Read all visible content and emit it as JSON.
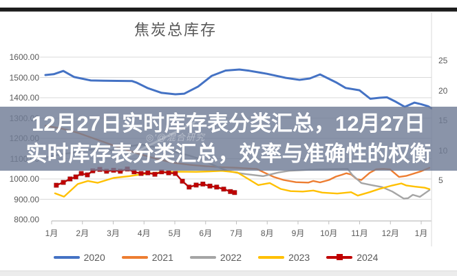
{
  "header": {
    "top_bar": true
  },
  "chart": {
    "title": "焦炭总库存",
    "y_axis_left_labels": [
      "1600.00",
      "1500.00",
      "1400.00",
      "1300.00",
      "1200.00",
      "1100.00",
      "1000.00",
      "900.00",
      "800.00"
    ],
    "y_axis_right_labels": [
      "25",
      "20",
      "15",
      "10",
      "5"
    ],
    "x_axis_labels": [
      "1月",
      "2月",
      "3月",
      "4月",
      "5月",
      "6月",
      "7月",
      "8月",
      "9月",
      "10月",
      "11月",
      "12月",
      "1月"
    ],
    "legend_labels": [
      "2020",
      "2021",
      "2022",
      "2023",
      "2024"
    ],
    "colors": {
      "s2020": "#4472C4",
      "s2021": "#ED7D31",
      "s2022": "#A5A5A5",
      "s2023": "#FFC000",
      "s2024": "#C00000",
      "gridline": "#D9D9D9",
      "axis": "#BFBFBF",
      "text": "#595959"
    }
  },
  "overlay": {
    "line1": "12月27日实时库存表分类汇总，12月27日",
    "line2": "实时库存表分类汇总，效率与准确性的权衡",
    "watermark": "◎'@混合研究",
    "background": "rgba(112,125,150,0.82)"
  },
  "chart_data": {
    "type": "line",
    "title": "焦炭总库存",
    "xlabel": "",
    "ylabel": "",
    "x_axis": "months 1月 through following 1月 (weekly points)",
    "ylim": [
      800,
      1600
    ],
    "y_tick_step": 100,
    "grid": true,
    "legend_position": "bottom",
    "series": [
      {
        "name": "2020",
        "color": "#4472C4",
        "marker": "none",
        "points": [
          [
            1.0,
            1512
          ],
          [
            1.26,
            1516
          ],
          [
            1.56,
            1532
          ],
          [
            1.9,
            1502
          ],
          [
            2.42,
            1485
          ],
          [
            2.81,
            1484
          ],
          [
            3.24,
            1483
          ],
          [
            3.71,
            1482
          ],
          [
            3.84,
            1475
          ],
          [
            4.2,
            1447
          ],
          [
            4.63,
            1424
          ],
          [
            5.06,
            1417
          ],
          [
            5.34,
            1420
          ],
          [
            5.77,
            1455
          ],
          [
            6.2,
            1508
          ],
          [
            6.63,
            1534
          ],
          [
            7.06,
            1539
          ],
          [
            7.37,
            1533
          ],
          [
            7.92,
            1518
          ],
          [
            8.51,
            1498
          ],
          [
            8.94,
            1488
          ],
          [
            9.26,
            1495
          ],
          [
            9.58,
            1515
          ],
          [
            10.08,
            1476
          ],
          [
            10.38,
            1448
          ],
          [
            10.81,
            1437
          ],
          [
            11.15,
            1395
          ],
          [
            11.45,
            1400
          ],
          [
            11.67,
            1402
          ],
          [
            11.95,
            1380
          ],
          [
            12.23,
            1355
          ],
          [
            12.53,
            1376
          ],
          [
            12.74,
            1368
          ],
          [
            12.96,
            1358
          ],
          [
            13.06,
            1348
          ]
        ]
      },
      {
        "name": "2021",
        "color": "#ED7D31",
        "marker": "none",
        "points": [
          [
            1.0,
            1262
          ],
          [
            1.5,
            1248
          ],
          [
            2.0,
            1228
          ],
          [
            2.5,
            1200
          ],
          [
            3.0,
            1172
          ],
          [
            3.5,
            1145
          ],
          [
            4.0,
            1120
          ],
          [
            4.5,
            1098
          ],
          [
            5.0,
            1080
          ],
          [
            5.5,
            1070
          ],
          [
            6.0,
            1063
          ],
          [
            6.5,
            1058
          ],
          [
            7.0,
            1055
          ],
          [
            7.3,
            1052
          ],
          [
            7.6,
            1050
          ],
          [
            7.86,
            1030
          ],
          [
            8.14,
            1010
          ],
          [
            8.44,
            995
          ],
          [
            8.83,
            984
          ],
          [
            9.22,
            982
          ],
          [
            9.37,
            990
          ],
          [
            9.58,
            983
          ],
          [
            9.86,
            995
          ],
          [
            10.08,
            1012
          ],
          [
            10.25,
            1020
          ],
          [
            10.4,
            1028
          ],
          [
            10.55,
            1022
          ],
          [
            10.72,
            1000
          ],
          [
            10.87,
            995
          ],
          [
            11.13,
            1030
          ],
          [
            11.34,
            1048
          ],
          [
            11.56,
            1050
          ],
          [
            11.77,
            1047
          ],
          [
            12.05,
            1010
          ],
          [
            12.27,
            1015
          ],
          [
            12.48,
            1025
          ],
          [
            12.74,
            1038
          ],
          [
            13.0,
            1055
          ]
        ]
      },
      {
        "name": "2022",
        "color": "#A5A5A5",
        "marker": "none",
        "points": [
          [
            1.0,
            1105
          ],
          [
            1.5,
            1122
          ],
          [
            2.0,
            1132
          ],
          [
            2.5,
            1147
          ],
          [
            3.0,
            1140
          ],
          [
            3.5,
            1158
          ],
          [
            4.0,
            1170
          ],
          [
            4.5,
            1155
          ],
          [
            5.0,
            1135
          ],
          [
            5.5,
            1115
          ],
          [
            5.9,
            1095
          ],
          [
            6.2,
            1072
          ],
          [
            6.45,
            1055
          ],
          [
            6.68,
            1040
          ],
          [
            7.0,
            1030
          ],
          [
            7.26,
            1024
          ],
          [
            7.8,
            1014
          ],
          [
            8.29,
            1032
          ],
          [
            8.61,
            1040
          ],
          [
            9.26,
            1045
          ],
          [
            9.9,
            1048
          ],
          [
            10.44,
            1050
          ],
          [
            10.59,
            1020
          ],
          [
            10.87,
            980
          ],
          [
            11.19,
            970
          ],
          [
            11.52,
            960
          ],
          [
            11.84,
            938
          ],
          [
            12.2,
            903
          ],
          [
            12.33,
            905
          ],
          [
            12.48,
            922
          ],
          [
            12.7,
            912
          ],
          [
            13.0,
            945
          ]
        ]
      },
      {
        "name": "2023",
        "color": "#FFC000",
        "marker": "none",
        "points": [
          [
            1.3,
            929
          ],
          [
            1.58,
            913
          ],
          [
            2.01,
            975
          ],
          [
            2.33,
            990
          ],
          [
            2.63,
            981
          ],
          [
            3.13,
            1005
          ],
          [
            3.62,
            1014
          ],
          [
            4.1,
            1025
          ],
          [
            4.63,
            1033
          ],
          [
            5.17,
            1036
          ],
          [
            5.71,
            1035
          ],
          [
            6.14,
            1037
          ],
          [
            6.51,
            1040
          ],
          [
            7.0,
            1032
          ],
          [
            7.26,
            1007
          ],
          [
            7.65,
            970
          ],
          [
            8.01,
            980
          ],
          [
            8.35,
            951
          ],
          [
            8.66,
            940
          ],
          [
            9.04,
            938
          ],
          [
            9.37,
            943
          ],
          [
            9.65,
            933
          ],
          [
            10.12,
            928
          ],
          [
            10.55,
            935
          ],
          [
            10.76,
            918
          ],
          [
            11.13,
            935
          ],
          [
            11.41,
            950
          ],
          [
            11.84,
            968
          ],
          [
            12.12,
            978
          ],
          [
            12.27,
            968
          ],
          [
            12.55,
            962
          ],
          [
            12.85,
            957
          ],
          [
            13.0,
            950
          ]
        ]
      },
      {
        "name": "2024",
        "color": "#C00000",
        "marker": "square",
        "points": [
          [
            1.34,
            969
          ],
          [
            1.56,
            983
          ],
          [
            1.77,
            1000
          ],
          [
            1.95,
            1010
          ],
          [
            2.12,
            1027
          ],
          [
            2.31,
            1020
          ],
          [
            2.48,
            1040
          ],
          [
            2.7,
            1047
          ],
          [
            2.91,
            1038
          ],
          [
            3.13,
            1043
          ],
          [
            3.34,
            1038
          ],
          [
            3.56,
            1049
          ],
          [
            3.77,
            1035
          ],
          [
            3.99,
            1027
          ],
          [
            4.2,
            1030
          ],
          [
            4.42,
            1023
          ],
          [
            4.63,
            1035
          ],
          [
            4.85,
            1030
          ],
          [
            5.06,
            1027
          ],
          [
            5.28,
            989
          ],
          [
            5.49,
            960
          ],
          [
            5.71,
            970
          ],
          [
            5.92,
            975
          ],
          [
            6.14,
            965
          ],
          [
            6.35,
            960
          ],
          [
            6.57,
            950
          ],
          [
            6.78,
            938
          ],
          [
            6.91,
            933
          ]
        ]
      }
    ]
  }
}
